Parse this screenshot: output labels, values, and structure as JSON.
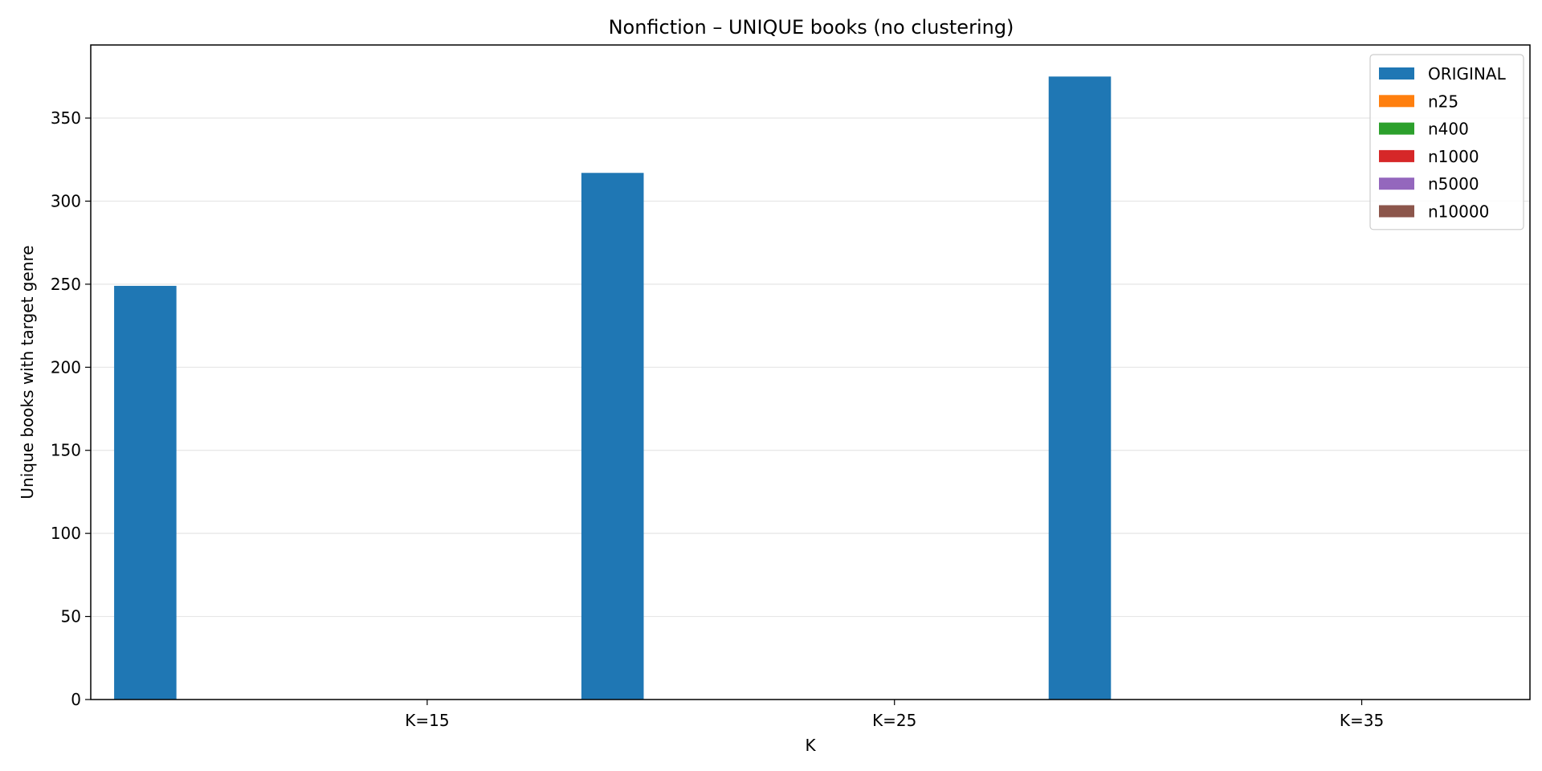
{
  "chart_data": {
    "type": "bar",
    "title": "Nonfiction – UNIQUE books (no clustering)",
    "xlabel": "K",
    "ylabel": "Unique books with target genre",
    "categories": [
      "K=15",
      "K=25",
      "K=35"
    ],
    "ylim": [
      0,
      394
    ],
    "yticks": [
      0,
      50,
      100,
      150,
      200,
      250,
      300,
      350
    ],
    "grid": "horizontal",
    "legend_position": "upper right",
    "series": [
      {
        "name": "ORIGINAL",
        "color": "#1f77b4",
        "values": [
          249,
          317,
          375
        ]
      },
      {
        "name": "n25",
        "color": "#ff7f0e",
        "values": [
          0,
          0,
          0
        ]
      },
      {
        "name": "n400",
        "color": "#2ca02c",
        "values": [
          0,
          0,
          0
        ]
      },
      {
        "name": "n1000",
        "color": "#d62728",
        "values": [
          0,
          0,
          0
        ]
      },
      {
        "name": "n5000",
        "color": "#9467bd",
        "values": [
          0,
          0,
          0
        ]
      },
      {
        "name": "n10000",
        "color": "#8c564b",
        "values": [
          0,
          0,
          0
        ]
      }
    ]
  }
}
